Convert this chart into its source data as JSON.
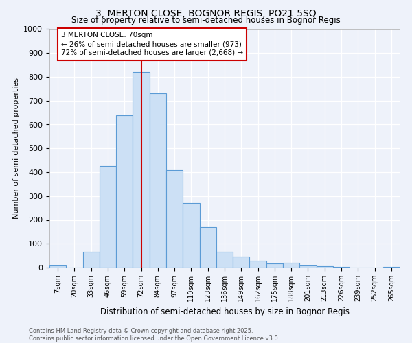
{
  "title": "3, MERTON CLOSE, BOGNOR REGIS, PO21 5SQ",
  "subtitle": "Size of property relative to semi-detached houses in Bognor Regis",
  "xlabel": "Distribution of semi-detached houses by size in Bognor Regis",
  "ylabel": "Number of semi-detached properties",
  "footer_line1": "Contains HM Land Registry data © Crown copyright and database right 2025.",
  "footer_line2": "Contains public sector information licensed under the Open Government Licence v3.0.",
  "bin_labels": [
    "7sqm",
    "20sqm",
    "33sqm",
    "46sqm",
    "59sqm",
    "72sqm",
    "84sqm",
    "97sqm",
    "110sqm",
    "123sqm",
    "136sqm",
    "149sqm",
    "162sqm",
    "175sqm",
    "188sqm",
    "201sqm",
    "213sqm",
    "226sqm",
    "239sqm",
    "252sqm",
    "265sqm"
  ],
  "bar_values": [
    8,
    0,
    65,
    425,
    640,
    820,
    730,
    410,
    270,
    170,
    65,
    45,
    30,
    18,
    20,
    8,
    5,
    3,
    1,
    0,
    2
  ],
  "bar_color": "#cce0f5",
  "bar_edge_color": "#5b9bd5",
  "highlight_index": 5,
  "highlight_line_color": "#cc0000",
  "annotation_text": "3 MERTON CLOSE: 70sqm\n← 26% of semi-detached houses are smaller (973)\n72% of semi-detached houses are larger (2,668) →",
  "annotation_box_color": "#ffffff",
  "annotation_box_edge_color": "#cc0000",
  "ylim": [
    0,
    1000
  ],
  "yticks": [
    0,
    100,
    200,
    300,
    400,
    500,
    600,
    700,
    800,
    900,
    1000
  ],
  "background_color": "#eef2fa",
  "axes_background_color": "#eef2fa",
  "grid_color": "#ffffff",
  "title_fontsize": 10,
  "subtitle_fontsize": 9
}
